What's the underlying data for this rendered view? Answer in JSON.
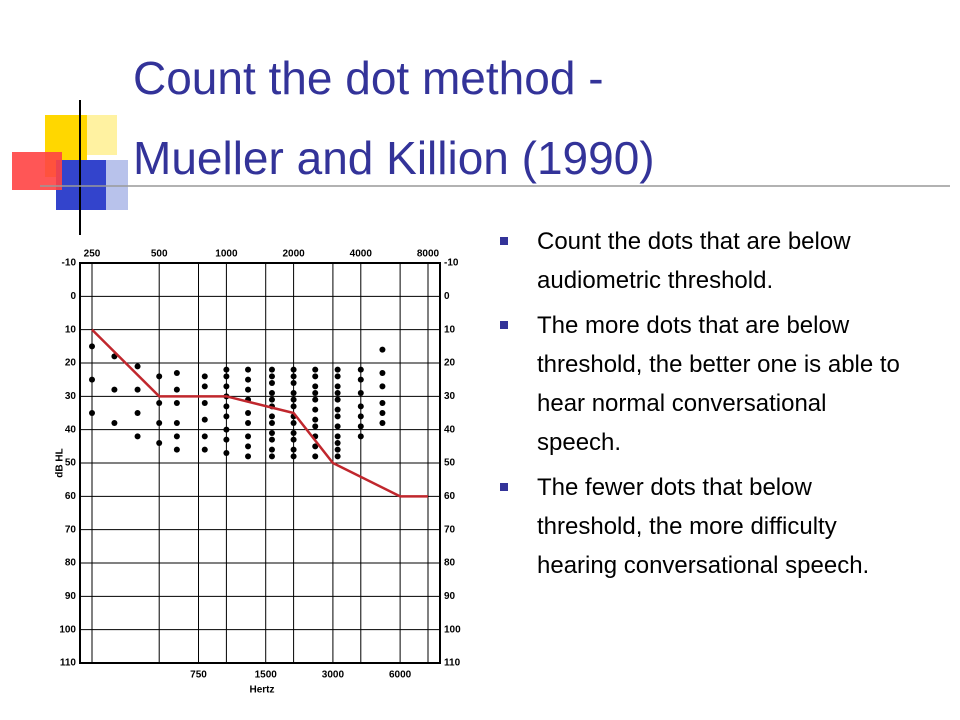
{
  "title": {
    "line1": "Count the dot method -",
    "line2": "Mueller and Killion (1990)"
  },
  "bullets": [
    "Count the dots that are below audiometric threshold.",
    "The more dots that are below threshold, the better one is able to hear normal conversational speech.",
    "The fewer dots that below threshold, the more difficulty hearing conversational speech."
  ],
  "audiogram": {
    "y_label": "dB HL",
    "x_label": "Hertz",
    "xlim": [
      250,
      8000
    ],
    "ylim": [
      -10,
      110
    ],
    "top_ticks": [
      250,
      500,
      1000,
      2000,
      4000,
      8000
    ],
    "bottom_ticks": [
      750,
      1500,
      3000,
      6000
    ],
    "yticks": [
      -10,
      0,
      10,
      20,
      30,
      40,
      50,
      60,
      70,
      80,
      90,
      100,
      110
    ],
    "threshold": {
      "color": "#c0272d",
      "x": [
        250,
        500,
        1000,
        2000,
        3000,
        6000,
        8000
      ],
      "y": [
        10,
        30,
        30,
        35,
        50,
        60,
        60
      ]
    },
    "dots": [
      {
        "freq": 250,
        "db": [
          15,
          25,
          35
        ]
      },
      {
        "freq": 315,
        "db": [
          18,
          28,
          38
        ]
      },
      {
        "freq": 400,
        "db": [
          21,
          28,
          35,
          42
        ]
      },
      {
        "freq": 500,
        "db": [
          24,
          32,
          38,
          44
        ]
      },
      {
        "freq": 600,
        "db": [
          23,
          28,
          32,
          38,
          42,
          46
        ]
      },
      {
        "freq": 800,
        "db": [
          24,
          27,
          32,
          37,
          42,
          46
        ]
      },
      {
        "freq": 1000,
        "db": [
          22,
          24,
          27,
          30,
          33,
          36,
          40,
          43,
          47
        ]
      },
      {
        "freq": 1250,
        "db": [
          22,
          25,
          28,
          31,
          35,
          38,
          42,
          45,
          48
        ]
      },
      {
        "freq": 1600,
        "db": [
          22,
          24,
          26,
          29,
          31,
          33,
          36,
          38,
          41,
          43,
          46,
          48
        ]
      },
      {
        "freq": 2000,
        "db": [
          22,
          24,
          26,
          29,
          31,
          33,
          36,
          38,
          41,
          43,
          46,
          48
        ]
      },
      {
        "freq": 2500,
        "db": [
          22,
          24,
          27,
          29,
          31,
          34,
          37,
          39,
          42,
          45,
          48
        ]
      },
      {
        "freq": 3150,
        "db": [
          22,
          24,
          27,
          29,
          31,
          34,
          36,
          39,
          42,
          44,
          46,
          48
        ]
      },
      {
        "freq": 4000,
        "db": [
          22,
          25,
          29,
          33,
          36,
          39,
          42
        ]
      },
      {
        "freq": 5000,
        "db": [
          16,
          23,
          27,
          32,
          35,
          38
        ]
      }
    ]
  }
}
